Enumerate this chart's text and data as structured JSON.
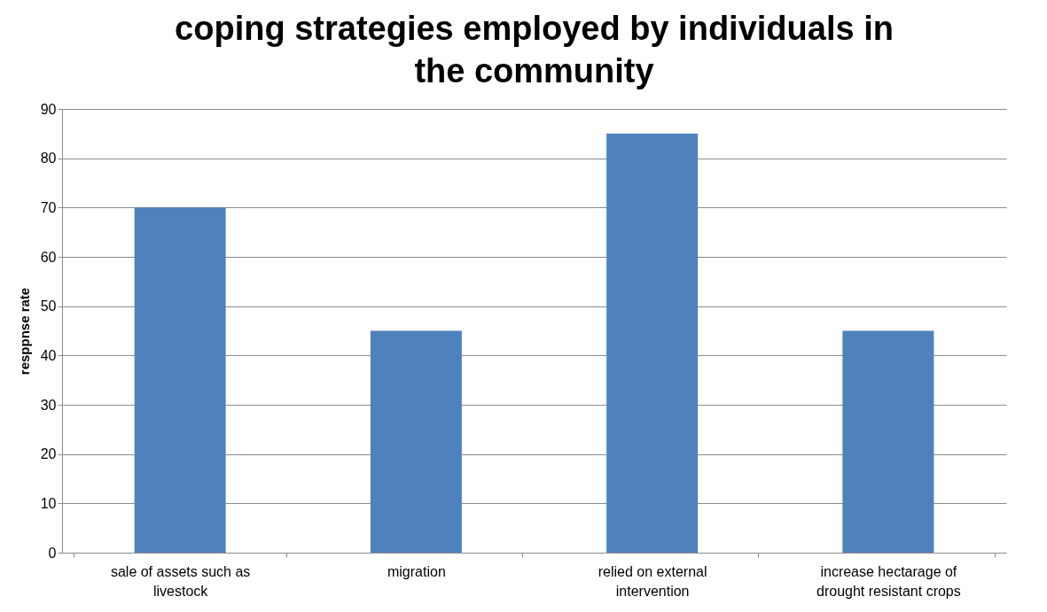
{
  "chart_data": {
    "type": "bar",
    "title": "coping strategies employed by individuals in the community",
    "ylabel": "resppnse rate",
    "categories": [
      "sale of assets such as livestock",
      "migration",
      "relied on external intervention",
      "increase hectarage of drought resistant crops"
    ],
    "values": [
      70,
      45,
      85,
      45
    ],
    "color": "#4f81bd",
    "ylim": [
      0,
      90
    ],
    "yticks": [
      0,
      10,
      20,
      30,
      40,
      50,
      60,
      70,
      80,
      90
    ],
    "grid": "y"
  }
}
